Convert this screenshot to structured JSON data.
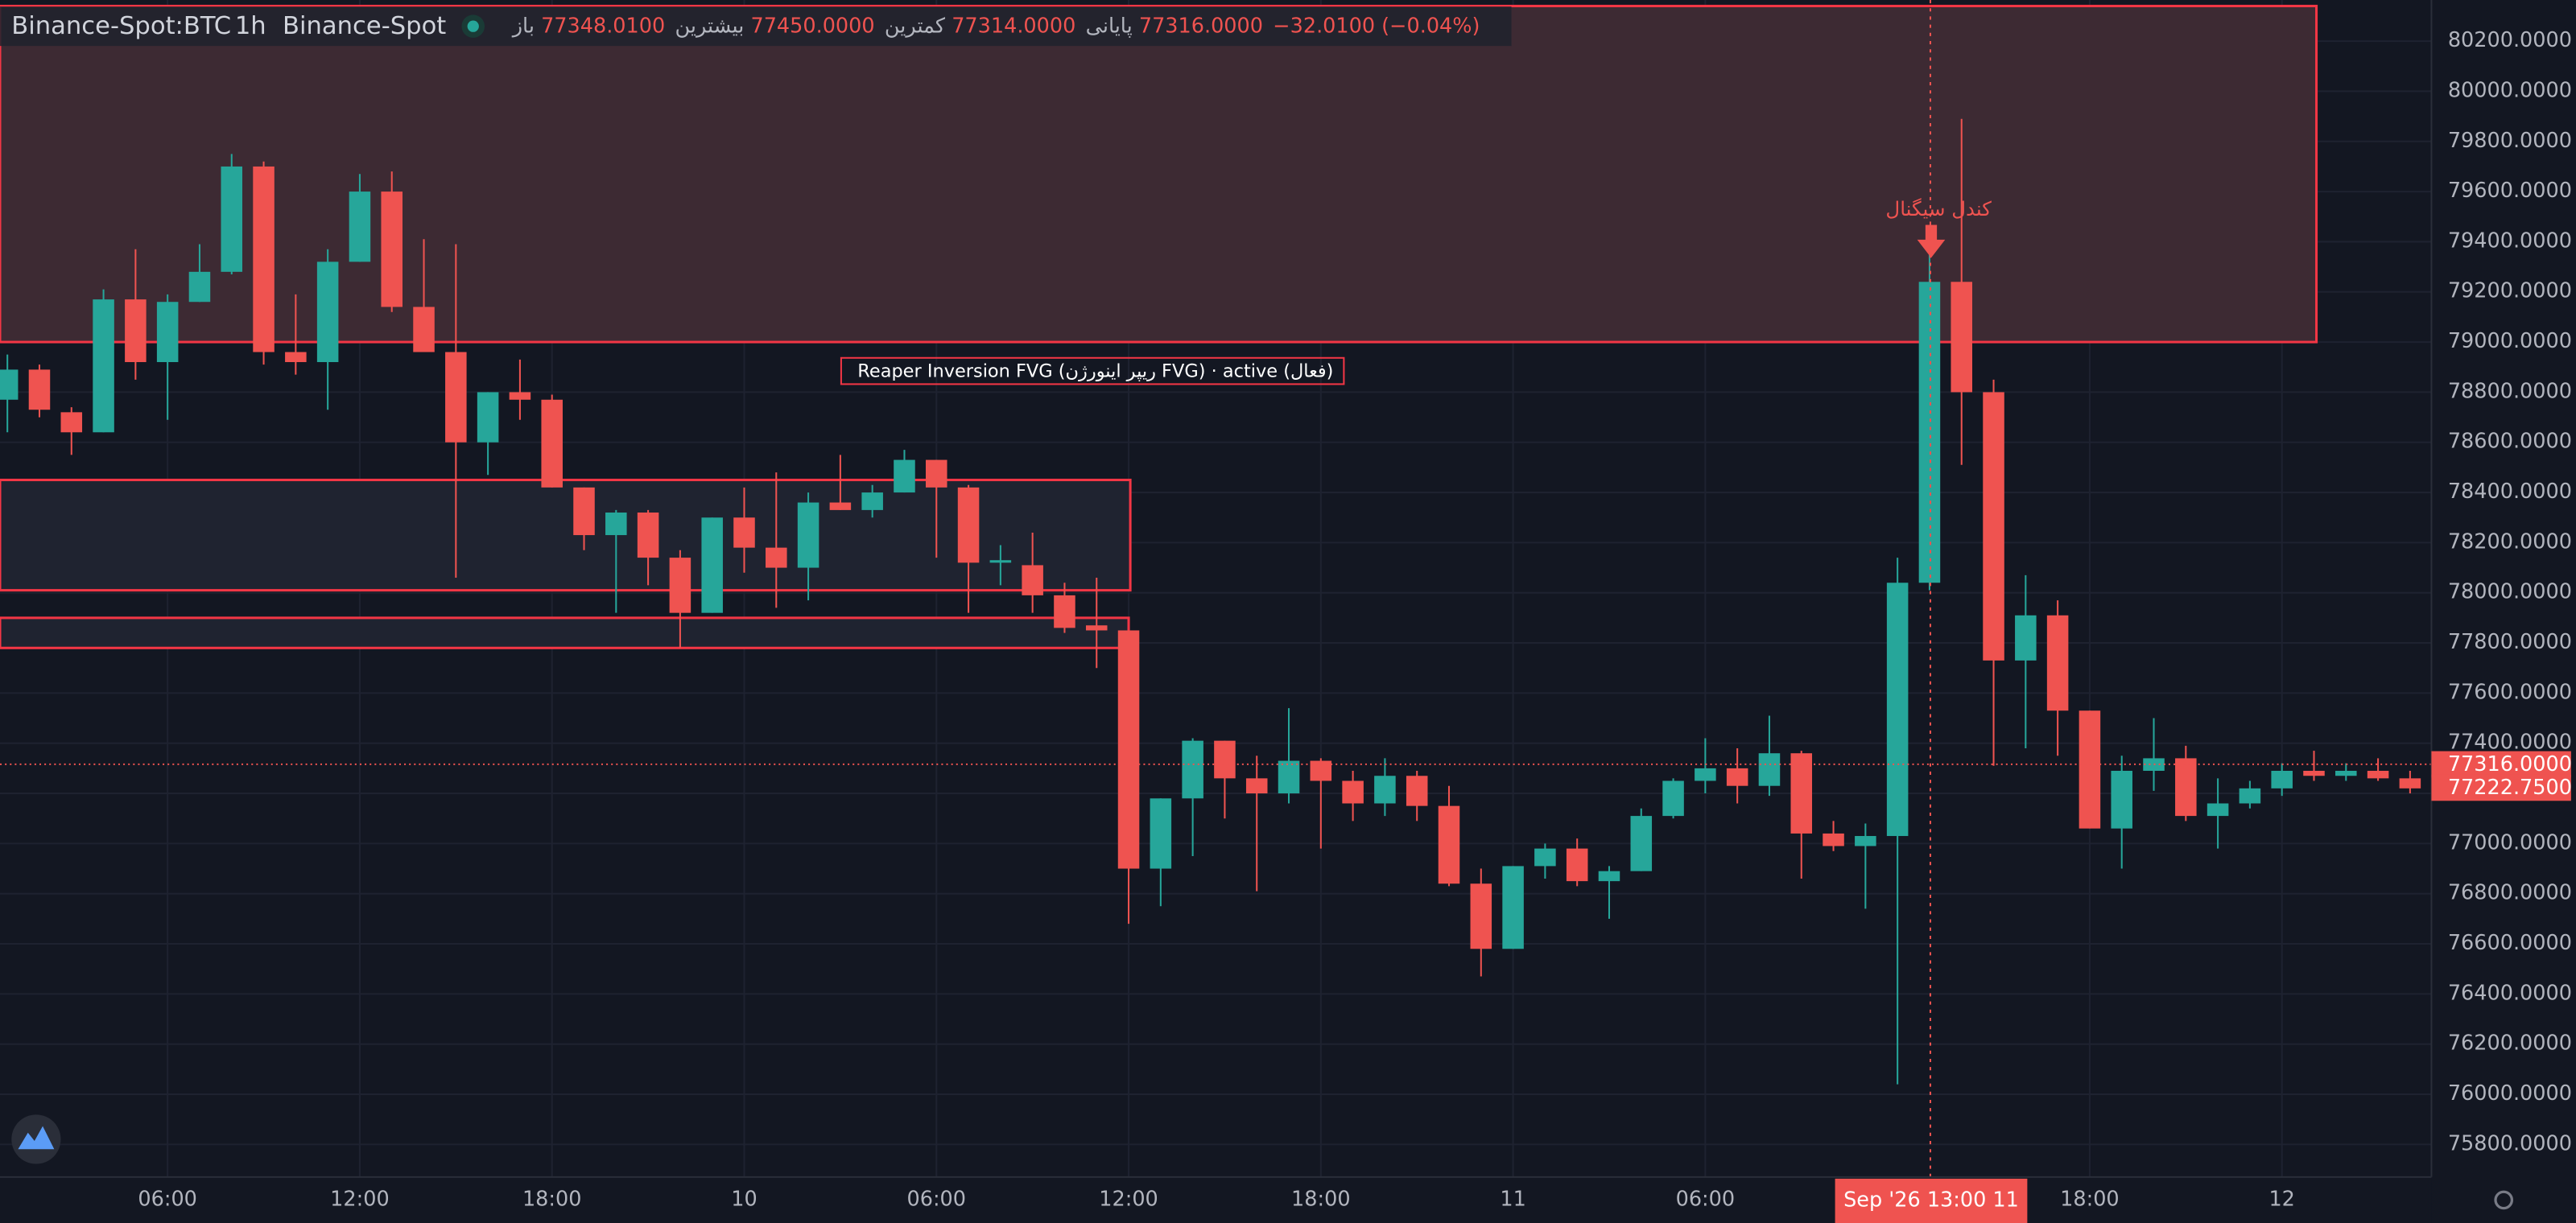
{
  "header": {
    "symbol": "Binance-Spot:BTC",
    "interval": "1h",
    "exchange": "Binance-Spot",
    "ohlc": [
      {
        "label": "باز",
        "value": "77348.0100"
      },
      {
        "label": "بیشترین",
        "value": "77450.0000"
      },
      {
        "label": "کمترین",
        "value": "77314.0000"
      },
      {
        "label": "پایانی",
        "value": "77316.0000"
      }
    ],
    "change": "−32.0100 (−0.04%)"
  },
  "chart_data": {
    "type": "candlestick",
    "categories": [
      null,
      null,
      null,
      null,
      null,
      "06:00",
      null,
      null,
      null,
      null,
      null,
      "12:00",
      null,
      null,
      null,
      null,
      null,
      "18:00",
      null,
      null,
      null,
      null,
      null,
      "10",
      null,
      null,
      null,
      null,
      null,
      "06:00",
      null,
      null,
      null,
      null,
      null,
      "12:00",
      null,
      null,
      null,
      null,
      null,
      "18:00",
      null,
      null,
      null,
      null,
      null,
      "11",
      null,
      null,
      null,
      null,
      null,
      "06:00",
      null,
      null,
      null,
      null,
      null,
      null,
      null,
      null,
      null,
      null,
      null,
      "18:00",
      null,
      null,
      null,
      null,
      null,
      "12",
      null,
      null,
      null,
      null
    ],
    "open": [
      78770,
      78890,
      78720,
      78640,
      79170,
      78920,
      79160,
      79280,
      79700,
      78960,
      78920,
      79320,
      79600,
      79140,
      78960,
      78600,
      78800,
      78770,
      78420,
      78230,
      78320,
      78140,
      77920,
      78300,
      78180,
      78100,
      78360,
      78330,
      78400,
      78530,
      78420,
      78120,
      78110,
      77990,
      77870,
      77850,
      76900,
      77180,
      77410,
      77260,
      77200,
      77330,
      77250,
      77160,
      77270,
      77150,
      76840,
      76580,
      76910,
      76980,
      76850,
      76890,
      77110,
      77250,
      77300,
      77230,
      77360,
      77040,
      76990,
      77030,
      78040,
      79240,
      78800,
      77730,
      77910,
      77530,
      77060,
      77290,
      77340,
      77110,
      77160,
      77220,
      77290,
      77270,
      77290,
      77260
    ],
    "high": [
      78950,
      78910,
      78740,
      79210,
      79370,
      79190,
      79390,
      79750,
      79720,
      79190,
      79370,
      79670,
      79680,
      79410,
      79390,
      78800,
      78930,
      78790,
      78420,
      78330,
      78330,
      78170,
      78300,
      78420,
      78480,
      78400,
      78550,
      78430,
      78570,
      78530,
      78430,
      78190,
      78240,
      78040,
      78060,
      77850,
      77180,
      77420,
      77410,
      77350,
      77540,
      77340,
      77290,
      77340,
      77290,
      77230,
      76900,
      76910,
      77000,
      77020,
      76910,
      77140,
      77260,
      77420,
      77380,
      77510,
      77370,
      77090,
      77080,
      78140,
      79380,
      79890,
      78850,
      78070,
      77970,
      77530,
      77350,
      77500,
      77390,
      77260,
      77250,
      77320,
      77370,
      77320,
      77340,
      77290
    ],
    "low": [
      78640,
      78700,
      78550,
      78640,
      78850,
      78690,
      79160,
      79270,
      78910,
      78870,
      78730,
      79320,
      79120,
      78960,
      78060,
      78470,
      78690,
      78420,
      78170,
      77920,
      78030,
      77780,
      77920,
      78080,
      77940,
      77970,
      78330,
      78300,
      78400,
      78140,
      77920,
      78030,
      77920,
      77840,
      77700,
      76680,
      76750,
      76950,
      77100,
      76810,
      77160,
      76980,
      77090,
      77110,
      77090,
      76830,
      76470,
      76580,
      76860,
      76830,
      76700,
      76890,
      77100,
      77200,
      77160,
      77190,
      76860,
      76970,
      76740,
      76040,
      78010,
      78510,
      77310,
      77380,
      77350,
      77060,
      76900,
      77210,
      77090,
      76980,
      77140,
      77190,
      77250,
      77250,
      77250,
      77200
    ],
    "close": [
      78890,
      78730,
      78640,
      79170,
      78920,
      79160,
      79280,
      79700,
      78960,
      78920,
      79320,
      79600,
      79140,
      78960,
      78600,
      78800,
      78770,
      78420,
      78230,
      78320,
      78140,
      77920,
      78300,
      78180,
      78100,
      78360,
      78330,
      78400,
      78530,
      78420,
      78120,
      78130,
      77990,
      77860,
      77850,
      76900,
      77180,
      77410,
      77260,
      77200,
      77330,
      77250,
      77160,
      77270,
      77150,
      76840,
      76580,
      76910,
      76980,
      76850,
      76890,
      77110,
      77250,
      77300,
      77230,
      77360,
      77040,
      76990,
      77030,
      78040,
      79240,
      78800,
      77730,
      77910,
      77530,
      77060,
      77290,
      77340,
      77110,
      77160,
      77220,
      77290,
      77270,
      77290,
      77260,
      77220
    ],
    "up_color": "#26a69a",
    "down_color": "#ef5350",
    "ylim": [
      75670,
      80364
    ],
    "yticks": [
      {
        "value": 75800,
        "label": "75800.0000"
      },
      {
        "value": 76000,
        "label": "76000.0000"
      },
      {
        "value": 76200,
        "label": "76200.0000"
      },
      {
        "value": 76400,
        "label": "76400.0000"
      },
      {
        "value": 76600,
        "label": "76600.0000"
      },
      {
        "value": 76800,
        "label": "76800.0000"
      },
      {
        "value": 77000,
        "label": "77000.0000"
      },
      {
        "value": 77200,
        "label": "77200.0000"
      },
      {
        "value": 77400,
        "label": "77400.0000"
      },
      {
        "value": 77600,
        "label": "77600.0000"
      },
      {
        "value": 77800,
        "label": "77800.0000"
      },
      {
        "value": 78000,
        "label": "78000.0000"
      },
      {
        "value": 78200,
        "label": "78200.0000"
      },
      {
        "value": 78400,
        "label": "78400.0000"
      },
      {
        "value": 78600,
        "label": "78600.0000"
      },
      {
        "value": 78800,
        "label": "78800.0000"
      },
      {
        "value": 79000,
        "label": "79000.0000"
      },
      {
        "value": 79200,
        "label": "79200.0000"
      },
      {
        "value": 79400,
        "label": "79400.0000"
      },
      {
        "value": 79600,
        "label": "79600.0000"
      },
      {
        "value": 79800,
        "label": "79800.0000"
      },
      {
        "value": 80000,
        "label": "80000.0000"
      },
      {
        "value": 80200,
        "label": "80200.0000"
      }
    ],
    "grid": true,
    "zones": [
      {
        "top": 80340,
        "bottom": 79000,
        "fill": "#3d2a33"
      },
      {
        "top": 78450,
        "bottom": 78010,
        "fill": "#1f2330"
      },
      {
        "top": 77900,
        "bottom": 77780,
        "fill": "#1f2330"
      }
    ],
    "zone_label": "Reaper Inversion FVG (ریپر اینورژن FVG) · active (فعال)",
    "signal_label": "کندل سیگنال",
    "price_lines": [
      {
        "value": 77316,
        "label": "77316.0000"
      },
      {
        "value": 77222.75,
        "label": "77222.7500"
      }
    ],
    "crosshair_label": "Sep '26  13:00 11"
  }
}
